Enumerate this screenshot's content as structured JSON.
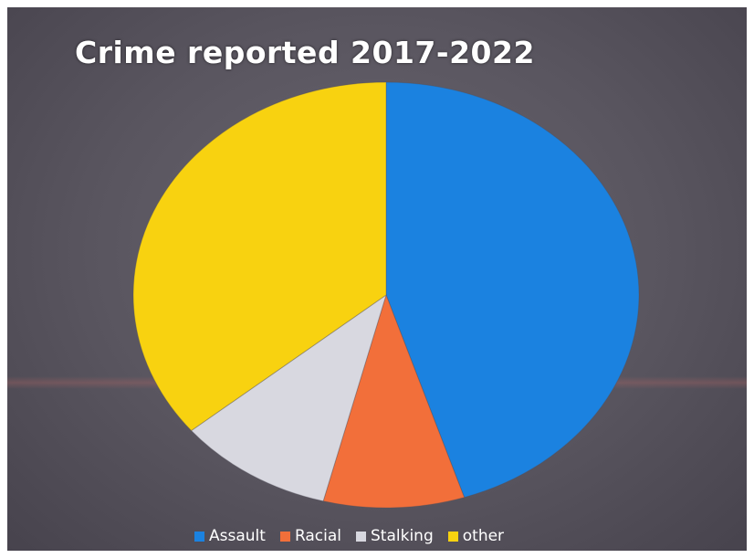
{
  "chart_data": {
    "type": "pie",
    "title": "Crime reported 2017-2022",
    "categories": [
      "Assault",
      "Racial",
      "Stalking",
      "other"
    ],
    "values": [
      45,
      9,
      10,
      36
    ],
    "colors": [
      "#1b82e0",
      "#f26f3a",
      "#d8d8e0",
      "#f8d210"
    ],
    "start_angle_deg": 0,
    "direction": "clockwise",
    "legend_position": "bottom",
    "grid": false
  }
}
